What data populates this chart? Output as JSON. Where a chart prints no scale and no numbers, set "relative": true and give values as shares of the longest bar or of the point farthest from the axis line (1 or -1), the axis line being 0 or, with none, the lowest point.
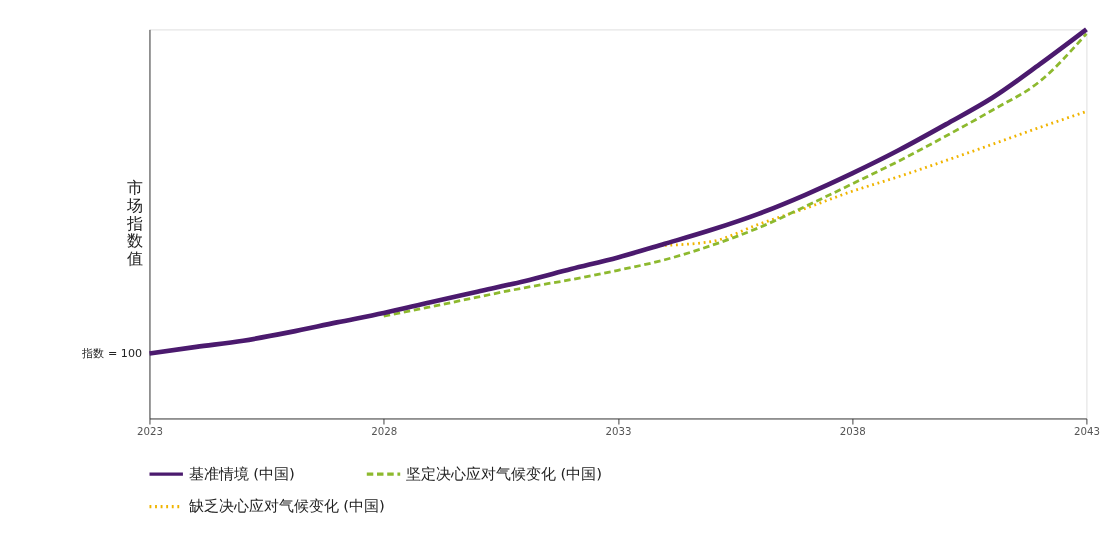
{
  "chart_data": {
    "type": "line",
    "relative": true,
    "ylabel": "市场指数值",
    "x": [
      2023,
      2024,
      2025,
      2026,
      2027,
      2028,
      2029,
      2030,
      2031,
      2032,
      2033,
      2034,
      2035,
      2036,
      2037,
      2038,
      2039,
      2040,
      2041,
      2042,
      2043
    ],
    "xlim": [
      2023,
      2043
    ],
    "xticks": [
      2023,
      2028,
      2033,
      2038,
      2043
    ],
    "series": [
      {
        "name": "基准情境 (中国)",
        "color": "#4b1a6e",
        "line_style": "solid",
        "values": [
          0.167,
          0.184,
          0.2,
          0.222,
          0.247,
          0.271,
          0.299,
          0.326,
          0.353,
          0.384,
          0.414,
          0.449,
          0.485,
          0.526,
          0.575,
          0.63,
          0.69,
          0.756,
          0.825,
          0.91,
          1
        ]
      },
      {
        "name": "坚定决心应对气候变化 (中国)",
        "color": "#8db92e",
        "line_style": "dashed",
        "values": [
          null,
          null,
          null,
          null,
          null,
          0.263,
          0.287,
          0.312,
          0.336,
          0.357,
          0.381,
          0.408,
          0.445,
          0.49,
          0.545,
          0.603,
          0.662,
          0.726,
          0.793,
          0.866,
          0.989
        ]
      },
      {
        "name": "缺乏决心应对气候变化 (中国)",
        "color": "#f0b400",
        "line_style": "dotted",
        "values": [
          null,
          null,
          null,
          null,
          null,
          null,
          null,
          null,
          null,
          null,
          null,
          0.445,
          0.455,
          0.499,
          0.54,
          0.584,
          0.622,
          0.663,
          0.705,
          0.748,
          0.789
        ]
      }
    ],
    "annotations": [
      {
        "text": "指数 = 100",
        "x": 2023,
        "y": 0.167
      }
    ],
    "grid": false,
    "legend": "bottom"
  }
}
